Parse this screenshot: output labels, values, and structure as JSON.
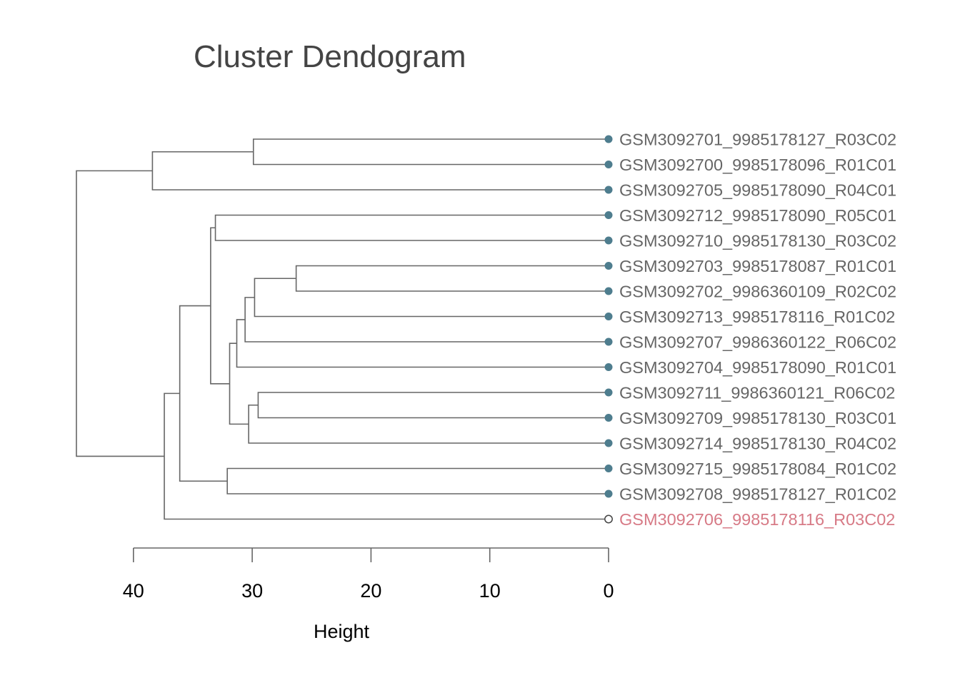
{
  "chart_data": {
    "type": "dendrogram",
    "title": "Cluster Dendogram",
    "xlabel": "Height",
    "xlim": [
      40,
      0
    ],
    "x_ticks": [
      40,
      30,
      20,
      10,
      0
    ],
    "tick_labels": [
      "40",
      "30",
      "20",
      "10",
      "0"
    ],
    "grid": false,
    "colors": {
      "line": "#666666",
      "leaf": "#4e7d8e",
      "outlier": "#d77a86",
      "outlier_marker": "#444444",
      "label": "#666666"
    },
    "leaves": [
      {
        "label": "GSM3092701_9985178127_R03C02",
        "outlier": false
      },
      {
        "label": "GSM3092700_9985178096_R01C01",
        "outlier": false
      },
      {
        "label": "GSM3092705_9985178090_R04C01",
        "outlier": false
      },
      {
        "label": "GSM3092712_9985178090_R05C01",
        "outlier": false
      },
      {
        "label": "GSM3092710_9985178130_R03C02",
        "outlier": false
      },
      {
        "label": "GSM3092703_9985178087_R01C01",
        "outlier": false
      },
      {
        "label": "GSM3092702_9986360109_R02C02",
        "outlier": false
      },
      {
        "label": "GSM3092713_9985178116_R01C02",
        "outlier": false
      },
      {
        "label": "GSM3092707_9986360122_R06C02",
        "outlier": false
      },
      {
        "label": "GSM3092704_9985178090_R01C01",
        "outlier": false
      },
      {
        "label": "GSM3092711_9986360121_R06C02",
        "outlier": false
      },
      {
        "label": "GSM3092709_9985178130_R03C01",
        "outlier": false
      },
      {
        "label": "GSM3092714_9985178130_R04C02",
        "outlier": false
      },
      {
        "label": "GSM3092715_9985178084_R01C02",
        "outlier": false
      },
      {
        "label": "GSM3092708_9985178127_R01C02",
        "outlier": false
      },
      {
        "label": "GSM3092706_9985178116_R03C02",
        "outlier": true
      }
    ],
    "merges": [
      {
        "id": "A",
        "children": [
          0,
          1
        ],
        "height": 29.9
      },
      {
        "id": "B",
        "children": [
          "A",
          2
        ],
        "height": 38.4
      },
      {
        "id": "C",
        "children": [
          3,
          4
        ],
        "height": 33.1
      },
      {
        "id": "D",
        "children": [
          5,
          6
        ],
        "height": 26.3
      },
      {
        "id": "E",
        "children": [
          "D",
          7
        ],
        "height": 29.8
      },
      {
        "id": "F",
        "children": [
          "E",
          8
        ],
        "height": 30.6
      },
      {
        "id": "G",
        "children": [
          "F",
          9
        ],
        "height": 31.3
      },
      {
        "id": "H",
        "children": [
          10,
          11
        ],
        "height": 29.5
      },
      {
        "id": "I",
        "children": [
          "H",
          12
        ],
        "height": 30.3
      },
      {
        "id": "J",
        "children": [
          "G",
          "I"
        ],
        "height": 31.9
      },
      {
        "id": "K",
        "children": [
          "C",
          "J"
        ],
        "height": 33.5
      },
      {
        "id": "L",
        "children": [
          13,
          14
        ],
        "height": 32.1
      },
      {
        "id": "M",
        "children": [
          "K",
          "L"
        ],
        "height": 36.1
      },
      {
        "id": "N",
        "children": [
          "M",
          15
        ],
        "height": 37.4
      },
      {
        "id": "O",
        "children": [
          "B",
          "N"
        ],
        "height": 44.8
      }
    ]
  }
}
